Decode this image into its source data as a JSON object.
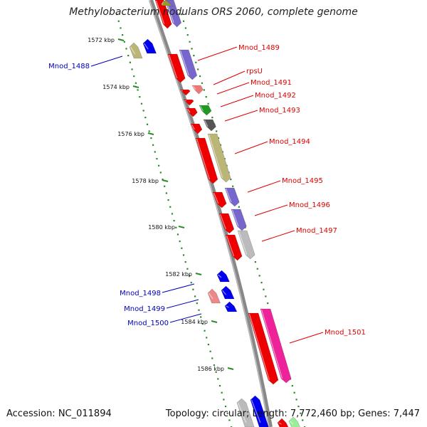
{
  "title": "Methylobacterium nodulans ORS 2060, complete genome",
  "footer": {
    "accession": "Accession: NC_011894",
    "topology": "Topology: circular; Length: 7,772,460 bp; Genes: 7,447"
  },
  "colors": {
    "forward_label": "#dd0000",
    "reverse_label": "#0000bb",
    "tick_dots": "#2a8a2a",
    "backbone": "#888888"
  },
  "ticks": [
    {
      "label": "1572 kbp"
    },
    {
      "label": "1574 kbp"
    },
    {
      "label": "1576 kbp"
    },
    {
      "label": "1578 kbp"
    },
    {
      "label": "1580 kbp"
    },
    {
      "label": "1582 kbp"
    },
    {
      "label": "1584 kbp"
    },
    {
      "label": "1586 kbp"
    }
  ],
  "labels": [
    {
      "name": "Mnod_1488",
      "strand": "reverse"
    },
    {
      "name": "Mnod_1489",
      "strand": "forward"
    },
    {
      "name": "rpsU",
      "strand": "forward"
    },
    {
      "name": "Mnod_1491",
      "strand": "forward"
    },
    {
      "name": "Mnod_1492",
      "strand": "forward"
    },
    {
      "name": "Mnod_1493",
      "strand": "forward"
    },
    {
      "name": "Mnod_1494",
      "strand": "forward"
    },
    {
      "name": "Mnod_1495",
      "strand": "forward"
    },
    {
      "name": "Mnod_1496",
      "strand": "forward"
    },
    {
      "name": "Mnod_1497",
      "strand": "forward"
    },
    {
      "name": "Mnod_1498",
      "strand": "reverse"
    },
    {
      "name": "Mnod_1499",
      "strand": "reverse"
    },
    {
      "name": "Mnod_1500",
      "strand": "reverse"
    },
    {
      "name": "Mnod_1501",
      "strand": "forward"
    }
  ]
}
